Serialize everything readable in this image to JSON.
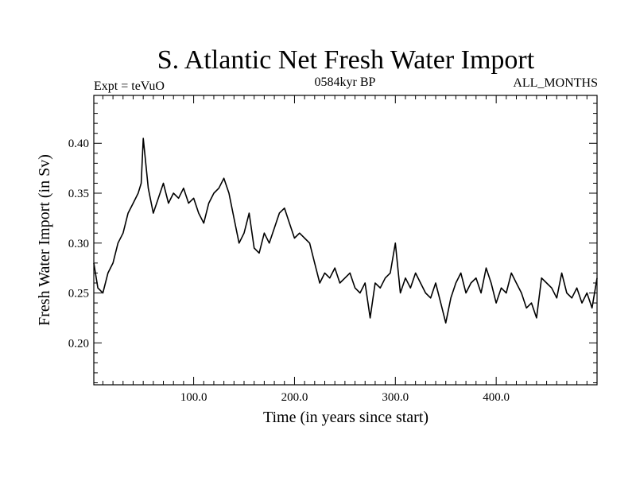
{
  "header": {
    "title": "S. Atlantic Net Fresh Water Import",
    "left_label": "Expt = teVuO",
    "center_label": "0584kyr BP",
    "right_label": "ALL_MONTHS"
  },
  "chart_data": {
    "type": "line",
    "title": "S. Atlantic Net Fresh Water Import",
    "xlabel": "Time (in years since start)",
    "ylabel": "Fresh Water Import (in Sv)",
    "xlim": [
      1,
      500
    ],
    "ylim": [
      0.158,
      0.448
    ],
    "xticks": [
      100,
      200,
      300,
      400
    ],
    "xtick_labels": [
      "100.0",
      "200.0",
      "300.0",
      "400.0"
    ],
    "yticks": [
      0.2,
      0.25,
      0.3,
      0.35,
      0.4
    ],
    "ytick_labels": [
      "0.20",
      "0.25",
      "0.30",
      "0.35",
      "0.40"
    ],
    "grid": false,
    "series": [
      {
        "color": "#000000",
        "x": [
          1,
          5,
          10,
          15,
          20,
          25,
          30,
          35,
          40,
          45,
          48,
          50,
          55,
          60,
          65,
          70,
          75,
          80,
          85,
          90,
          95,
          100,
          105,
          110,
          115,
          120,
          125,
          130,
          135,
          140,
          145,
          150,
          155,
          160,
          165,
          170,
          175,
          180,
          185,
          190,
          195,
          200,
          205,
          210,
          215,
          220,
          225,
          230,
          235,
          240,
          245,
          250,
          255,
          260,
          265,
          270,
          275,
          280,
          285,
          290,
          295,
          300,
          305,
          310,
          315,
          320,
          325,
          330,
          335,
          340,
          345,
          350,
          355,
          360,
          365,
          370,
          375,
          380,
          385,
          390,
          395,
          400,
          405,
          410,
          415,
          420,
          425,
          430,
          435,
          440,
          445,
          450,
          455,
          460,
          465,
          470,
          475,
          480,
          485,
          490,
          495,
          500
        ],
        "values": [
          0.28,
          0.255,
          0.25,
          0.27,
          0.28,
          0.3,
          0.31,
          0.33,
          0.34,
          0.35,
          0.36,
          0.405,
          0.355,
          0.33,
          0.345,
          0.36,
          0.34,
          0.35,
          0.345,
          0.355,
          0.34,
          0.345,
          0.33,
          0.32,
          0.34,
          0.35,
          0.355,
          0.365,
          0.35,
          0.325,
          0.3,
          0.31,
          0.33,
          0.295,
          0.29,
          0.31,
          0.3,
          0.315,
          0.33,
          0.335,
          0.32,
          0.305,
          0.31,
          0.305,
          0.3,
          0.28,
          0.26,
          0.27,
          0.265,
          0.275,
          0.26,
          0.265,
          0.27,
          0.255,
          0.25,
          0.26,
          0.225,
          0.26,
          0.255,
          0.265,
          0.27,
          0.3,
          0.25,
          0.265,
          0.255,
          0.27,
          0.26,
          0.25,
          0.245,
          0.26,
          0.24,
          0.22,
          0.245,
          0.26,
          0.27,
          0.25,
          0.26,
          0.265,
          0.25,
          0.275,
          0.26,
          0.24,
          0.255,
          0.25,
          0.27,
          0.26,
          0.25,
          0.235,
          0.24,
          0.225,
          0.265,
          0.26,
          0.255,
          0.245,
          0.27,
          0.25,
          0.245,
          0.255,
          0.24,
          0.25,
          0.235,
          0.265
        ]
      }
    ]
  }
}
